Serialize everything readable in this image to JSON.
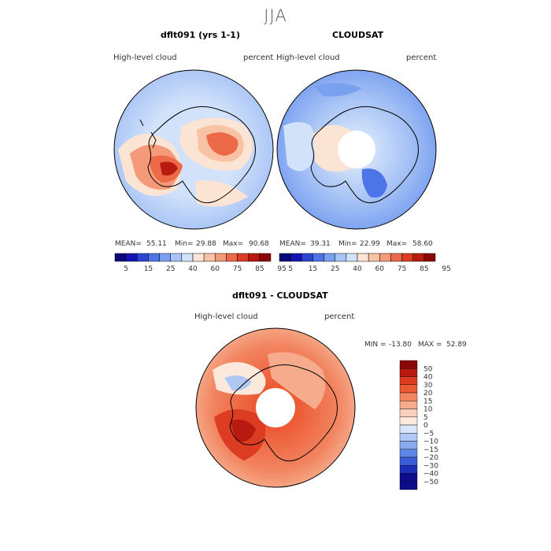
{
  "main_title": "JJA",
  "chart_data": [
    {
      "type": "heatmap",
      "title": "dflt091 (yrs 1-1)",
      "variable": "High-level cloud",
      "units": "percent",
      "projection": "south polar stereographic",
      "stats": {
        "mean_label": "MEAN=",
        "mean": "55.11",
        "min_label": "Min=",
        "min": "29.88",
        "max_label": "Max=",
        "max": "90.68"
      },
      "colorbar_ticks": [
        "5",
        "15",
        "25",
        "40",
        "60",
        "75",
        "85",
        "95"
      ]
    },
    {
      "type": "heatmap",
      "title": "CLOUDSAT",
      "variable": "High-level cloud",
      "units": "percent",
      "projection": "south polar stereographic",
      "stats": {
        "mean_label": "MEAN=",
        "mean": "39.31",
        "min_label": "Min=",
        "min": "22.99",
        "max_label": "Max=",
        "max": "58.60"
      },
      "colorbar_ticks": [
        "5",
        "15",
        "25",
        "40",
        "60",
        "75",
        "85",
        "95"
      ]
    },
    {
      "type": "heatmap",
      "title": "dflt091 - CLOUDSAT",
      "variable": "High-level cloud",
      "units": "percent",
      "projection": "south polar stereographic",
      "stats": {
        "min_label": "MIN =",
        "min": "-13.80",
        "max_label": "MAX =",
        "max": "52.89"
      },
      "colorbar_ticks": [
        "50",
        "40",
        "30",
        "20",
        "15",
        "10",
        "5",
        "0",
        "−5",
        "−10",
        "−15",
        "−20",
        "−30",
        "−40",
        "−50"
      ]
    }
  ],
  "colors": {
    "abs_scale": [
      "#08087a",
      "#1414b4",
      "#2d46d2",
      "#4d74e8",
      "#7aa0f0",
      "#a8c4f6",
      "#d2e2fa",
      "#fbe4d4",
      "#f8c2a4",
      "#f49a78",
      "#ec6a48",
      "#dc3c22",
      "#b81a10",
      "#8a0808"
    ],
    "diff_scale": [
      "#8a0808",
      "#b81a10",
      "#dc3c22",
      "#ec5a34",
      "#f28460",
      "#f6ac8c",
      "#f9d0bc",
      "#fde9dc",
      "#d8e6fa",
      "#b0c8f4",
      "#8aaaee",
      "#5f86e4",
      "#3a5cd6",
      "#1d2eb8",
      "#0c0c8c"
    ]
  }
}
